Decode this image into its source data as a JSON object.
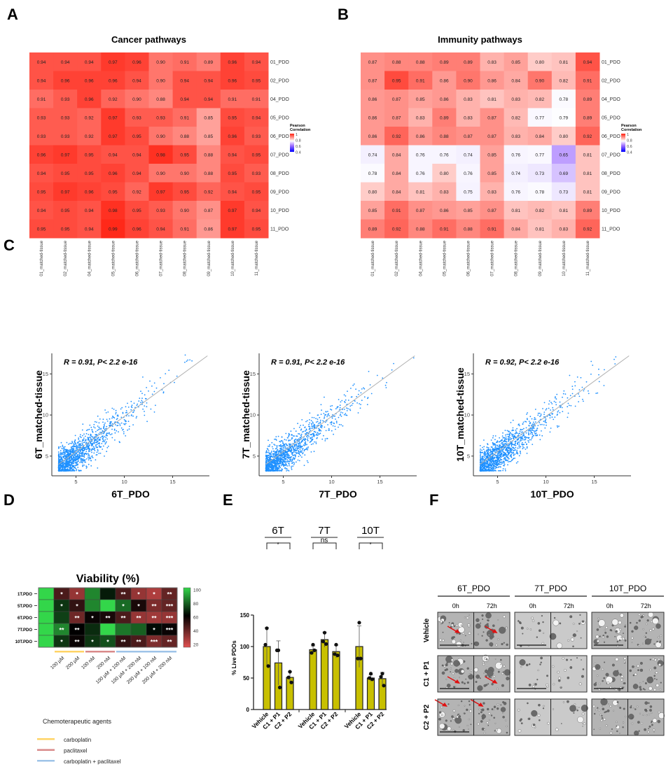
{
  "panel_labels": [
    "A",
    "B",
    "C",
    "D",
    "E",
    "F"
  ],
  "chart_data": [
    {
      "type": "heatmap",
      "title": "Cancer pathways",
      "rows": [
        "01_PDO",
        "02_PDO",
        "04_PDO",
        "05_PDO",
        "06_PDO",
        "07_PDO",
        "08_PDO",
        "09_PDO",
        "10_PDO",
        "11_PDO"
      ],
      "cols": [
        "01_matched-tissue",
        "02_matched-tissue",
        "04_matched-tissue",
        "05_matched-tissue",
        "06_matched-tissue",
        "07_matched-tissue",
        "08_matched-tissue",
        "09_matched-tissue",
        "10_matched-tissue",
        "11_matched-tissue"
      ],
      "values": [
        [
          "0.94",
          "0.94",
          "0.94",
          "0.97",
          "0.96",
          "0.90",
          "0.91",
          "0.89",
          "0.96",
          "0.94"
        ],
        [
          "0.94",
          "0.96",
          "0.96",
          "0.96",
          "0.94",
          "0.90",
          "0.94",
          "0.94",
          "0.96",
          "0.95"
        ],
        [
          "0.91",
          "0.93",
          "0.96",
          "0.92",
          "0.90",
          "0.88",
          "0.94",
          "0.94",
          "0.91",
          "0.91"
        ],
        [
          "0.93",
          "0.93",
          "0.92",
          "0.97",
          "0.93",
          "0.93",
          "0.91",
          "0.85",
          "0.95",
          "0.94"
        ],
        [
          "0.93",
          "0.93",
          "0.92",
          "0.97",
          "0.95",
          "0.90",
          "0.88",
          "0.85",
          "0.96",
          "0.93"
        ],
        [
          "0.96",
          "0.97",
          "0.95",
          "0.94",
          "0.94",
          "0.98",
          "0.95",
          "0.88",
          "0.94",
          "0.95"
        ],
        [
          "0.94",
          "0.95",
          "0.95",
          "0.96",
          "0.94",
          "0.90",
          "0.90",
          "0.88",
          "0.95",
          "0.93"
        ],
        [
          "0.95",
          "0.97",
          "0.96",
          "0.95",
          "0.92",
          "0.97",
          "0.95",
          "0.92",
          "0.94",
          "0.95"
        ],
        [
          "0.94",
          "0.95",
          "0.94",
          "0.98",
          "0.95",
          "0.93",
          "0.90",
          "0.87",
          "0.97",
          "0.94"
        ],
        [
          "0.95",
          "0.95",
          "0.94",
          "0.99",
          "0.96",
          "0.94",
          "0.91",
          "0.86",
          "0.97",
          "0.95"
        ]
      ],
      "legend": {
        "title": [
          "Pearson",
          "Correlation"
        ],
        "ticks": [
          "1",
          "0.8",
          "0.6",
          "0.4"
        ],
        "range": [
          0.4,
          1
        ]
      },
      "colors": {
        "high": "#ff2010",
        "mid": "#ffffff",
        "low": "#0000ff"
      }
    },
    {
      "type": "heatmap",
      "title": "Immunity pathways",
      "rows": [
        "01_PDO",
        "02_PDO",
        "04_PDO",
        "05_PDO",
        "06_PDO",
        "07_PDO",
        "08_PDO",
        "09_PDO",
        "10_PDO",
        "11_PDO"
      ],
      "cols": [
        "01_matched-tissue",
        "02_matched-tissue",
        "04_matched-tissue",
        "05_matched-tissue",
        "06_matched-tissue",
        "07_matched-tissue",
        "08_matched-tissue",
        "09_matched-tissue",
        "10_matched-tissue",
        "11_matched-tissue"
      ],
      "values": [
        [
          "0.87",
          "0.88",
          "0.88",
          "0.89",
          "0.89",
          "0.83",
          "0.85",
          "0.80",
          "0.81",
          "0.94"
        ],
        [
          "0.87",
          "0.95",
          "0.91",
          "0.86",
          "0.90",
          "0.86",
          "0.84",
          "0.90",
          "0.82",
          "0.91"
        ],
        [
          "0.86",
          "0.87",
          "0.85",
          "0.86",
          "0.83",
          "0.81",
          "0.83",
          "0.82",
          "0.78",
          "0.89"
        ],
        [
          "0.86",
          "0.87",
          "0.83",
          "0.89",
          "0.83",
          "0.87",
          "0.82",
          "0.77",
          "0.79",
          "0.89"
        ],
        [
          "0.86",
          "0.92",
          "0.86",
          "0.88",
          "0.87",
          "0.87",
          "0.83",
          "0.84",
          "0.80",
          "0.92"
        ],
        [
          "0.74",
          "0.84",
          "0.76",
          "0.76",
          "0.74",
          "0.85",
          "0.76",
          "0.77",
          "0.65",
          "0.81"
        ],
        [
          "0.78",
          "0.84",
          "0.76",
          "0.80",
          "0.76",
          "0.85",
          "0.74",
          "0.73",
          "0.69",
          "0.81"
        ],
        [
          "0.80",
          "0.84",
          "0.81",
          "0.83",
          "0.75",
          "0.83",
          "0.76",
          "0.78",
          "0.73",
          "0.81"
        ],
        [
          "0.85",
          "0.91",
          "0.87",
          "0.86",
          "0.85",
          "0.87",
          "0.81",
          "0.82",
          "0.81",
          "0.89"
        ],
        [
          "0.89",
          "0.92",
          "0.88",
          "0.91",
          "0.88",
          "0.91",
          "0.84",
          "0.81",
          "0.83",
          "0.92"
        ]
      ],
      "legend": {
        "title": [
          "Pearson",
          "Correlation"
        ],
        "ticks": [
          "1",
          "0.8",
          "0.6",
          "0.4"
        ],
        "range": [
          0.4,
          1
        ]
      },
      "colors": {
        "high": "#ff2010",
        "mid": "#ffffff",
        "low": "#0000ff"
      }
    },
    {
      "type": "scatter",
      "annotation": "R = 0.91, P< 2.2 e-16",
      "xlabel": "6T_PDO",
      "ylabel": "6T_matched-tissue",
      "xticks": [
        "5",
        "10",
        "15"
      ],
      "yticks": [
        "5",
        "10",
        "15"
      ],
      "xlim": [
        2.5,
        18.8
      ],
      "ylim": [
        2.6,
        17.5
      ],
      "point_color": "#1e90ff",
      "fit_line": true
    },
    {
      "type": "scatter",
      "annotation": "R = 0.91, P< 2.2 e-16",
      "xlabel": "7T_PDO",
      "ylabel": "7T_matched-tissue",
      "xticks": [
        "5",
        "10",
        "15"
      ],
      "yticks": [
        "5",
        "10",
        "15"
      ],
      "xlim": [
        2.5,
        18.8
      ],
      "ylim": [
        2.6,
        17.5
      ],
      "point_color": "#1e90ff",
      "fit_line": true
    },
    {
      "type": "scatter",
      "annotation": "R = 0.92, P< 2.2 e-16",
      "xlabel": "10T_PDO",
      "ylabel": "10T_matched-tissue",
      "xticks": [
        "5",
        "10",
        "15"
      ],
      "yticks": [
        "5",
        "10",
        "15"
      ],
      "xlim": [
        2.5,
        18.8
      ],
      "ylim": [
        2.6,
        17.5
      ],
      "point_color": "#1e90ff",
      "fit_line": true
    },
    {
      "type": "heatmap",
      "title": "Viability (%)",
      "rows": [
        "1T.PDO",
        "5T.PDO",
        "6T.PDO",
        "7T.PDO",
        "10T.PDO"
      ],
      "cols": [
        "",
        "100 µM",
        "200 µM",
        "100 nM",
        "200 nM",
        "100 µM + 100 nM",
        "100 µM + 200 nM",
        "200 µM + 100 nM",
        "200 µM + 200 nM"
      ],
      "values": [
        [
          100,
          45,
          30,
          85,
          65,
          45,
          30,
          25,
          40
        ],
        [
          100,
          70,
          50,
          85,
          100,
          80,
          55,
          35,
          40
        ],
        [
          100,
          72,
          38,
          58,
          55,
          45,
          30,
          28,
          30
        ],
        [
          100,
          85,
          60,
          68,
          100,
          82,
          78,
          62,
          58
        ],
        [
          100,
          70,
          58,
          70,
          75,
          50,
          45,
          35,
          40
        ]
      ],
      "significance": [
        [
          "",
          "*",
          "*",
          "",
          "",
          "**",
          "*",
          "*",
          "**"
        ],
        [
          "",
          "*",
          "*",
          "",
          "",
          "*",
          "*",
          "**",
          "***"
        ],
        [
          "",
          "",
          "**",
          "*",
          "**",
          "**",
          "**",
          "**",
          "***"
        ],
        [
          "",
          "**",
          "**",
          "",
          "",
          "",
          "",
          "*",
          "***"
        ],
        [
          "",
          "*",
          "**",
          "*",
          "*",
          "**",
          "**",
          "***",
          "**"
        ]
      ],
      "colorbar_ticks": [
        "100",
        "80",
        "60",
        "40",
        "20"
      ],
      "colorbar_range": [
        15,
        100
      ],
      "colors": {
        "high": "#33d64a",
        "mid": "#000000",
        "low": "#e05050"
      },
      "groups": [
        {
          "name": "carboplatin",
          "color": "#ffd466",
          "cols": [
            1,
            2
          ]
        },
        {
          "name": "paclitaxel",
          "color": "#d98a8a",
          "cols": [
            3,
            4
          ]
        },
        {
          "name": "carboplatin + paclitaxel",
          "color": "#9fc4e8",
          "cols": [
            5,
            6,
            7,
            8
          ]
        }
      ],
      "legend_title": "Chemoterapeutic agents"
    },
    {
      "type": "bar",
      "ylabel": "% Live PDOs",
      "yticks": [
        "0",
        "50",
        "100",
        "150"
      ],
      "ylim": [
        0,
        150
      ],
      "bar_color": "#c8c000",
      "categories": [
        "Vehicle",
        "C1 + P1",
        "C2 + P2"
      ],
      "groups": [
        {
          "name": "6T",
          "means": [
            100,
            74,
            51
          ],
          "sd": [
            30,
            35,
            9
          ],
          "points": [
            [
              129,
              103,
              69
            ],
            [
              94,
              94,
              35
            ],
            [
              60,
              51,
              43
            ]
          ],
          "comparison": "*"
        },
        {
          "name": "7T",
          "means": [
            95,
            111,
            92
          ],
          "sd": [
            6,
            12,
            10
          ],
          "points": [
            [
              103,
              90,
              94
            ],
            [
              122,
              108,
              104
            ],
            [
              103,
              88,
              86
            ]
          ],
          "comparison": "ns"
        },
        {
          "name": "10T",
          "means": [
            100,
            50,
            49
          ],
          "sd": [
            33,
            5,
            10
          ],
          "points": [
            [
              138,
              81,
              81
            ],
            [
              57,
              50,
              48
            ],
            [
              57,
              52,
              38
            ]
          ],
          "comparison": "*"
        }
      ]
    }
  ],
  "micrographs": {
    "columns": [
      "6T_PDO",
      "7T_PDO",
      "10T_PDO"
    ],
    "timepoints": [
      "0h",
      "72h"
    ],
    "rows": [
      "Vehicle",
      "C1 + P1",
      "C2 + P2"
    ],
    "arrow_color": "#e01010"
  }
}
